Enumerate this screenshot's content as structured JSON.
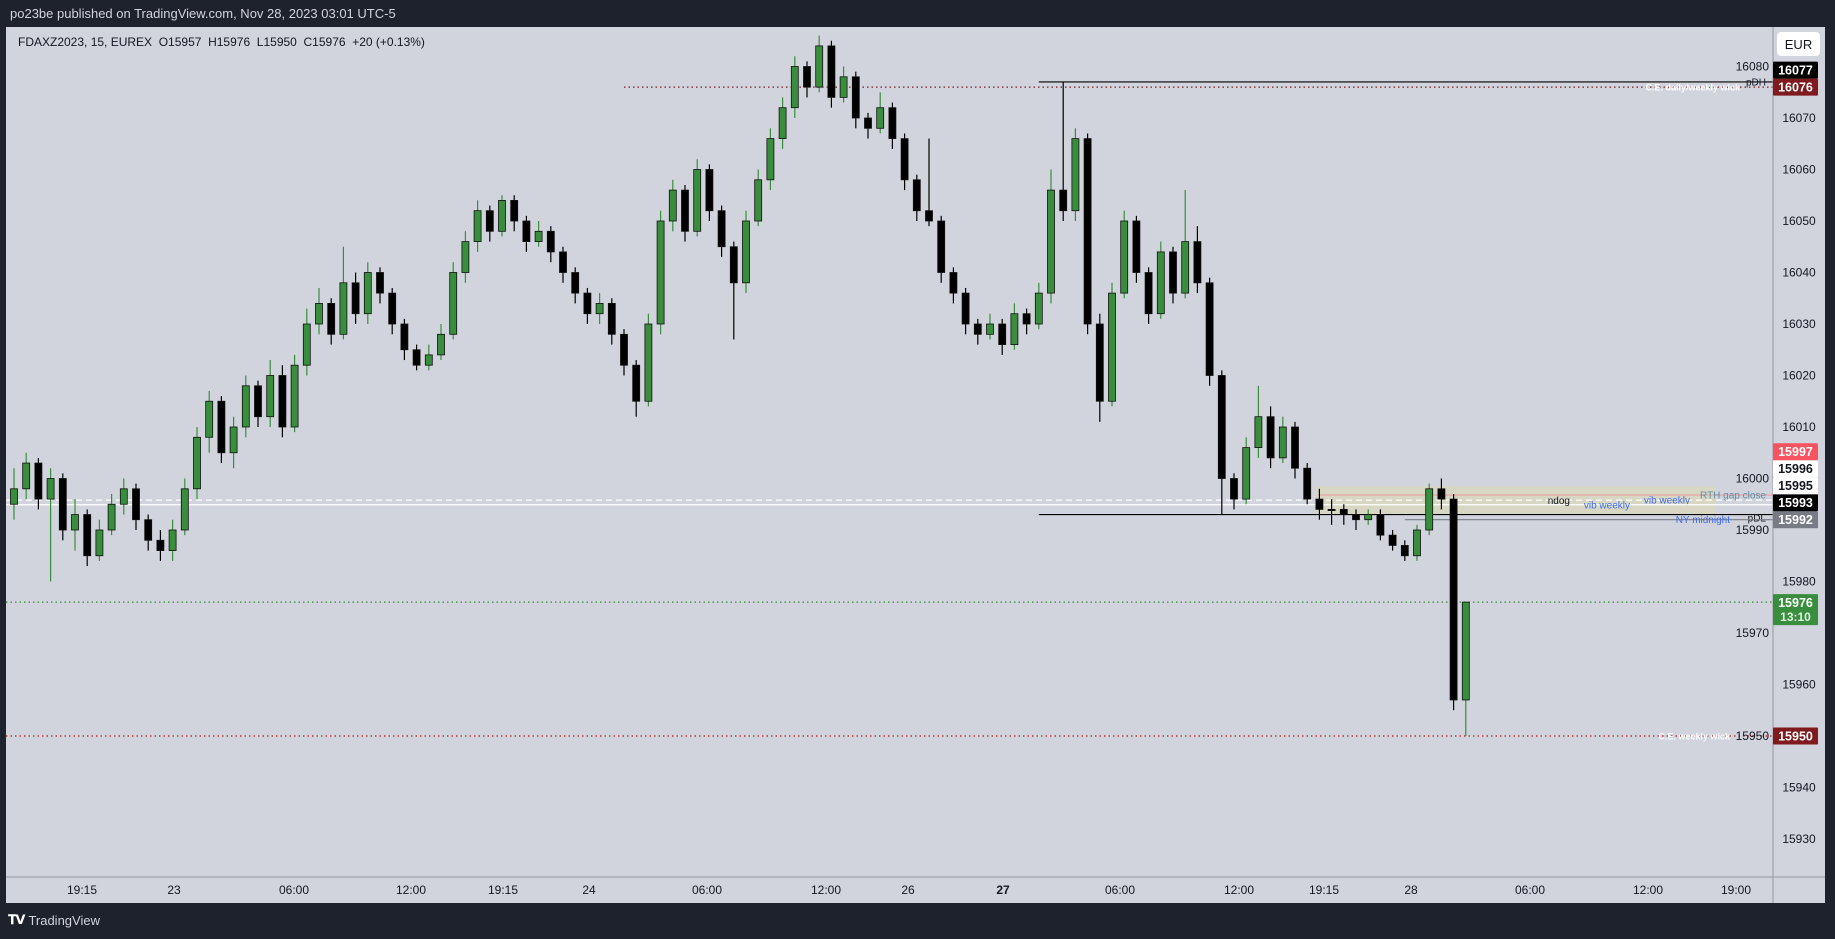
{
  "header": {
    "published": "po23be published on TradingView.com, Nov 28, 2023 03:01 UTC-5"
  },
  "legend": {
    "text": "FDAXZ2023, 15, EUREX  O15957  H15976  L15950  C15976  +20 (+0.13%)"
  },
  "currency_button": "EUR",
  "brand": {
    "logo_icon": "tradingview-logo-icon",
    "name": "TradingView"
  },
  "colors": {
    "background": "#1e222d",
    "chart_bg": "#d1d4dc",
    "up": "#388e3c",
    "down": "#000000",
    "zone": "#d8d7c3"
  },
  "chart_data": {
    "type": "candlestick",
    "symbol": "FDAXZ2023",
    "interval": "15",
    "exchange": "EUREX",
    "grid": false,
    "price_ticks": [
      16080,
      16070,
      16060,
      16050,
      16040,
      16030,
      16020,
      16010,
      16000,
      15990,
      15980,
      15970,
      15960,
      15950,
      15940,
      15930
    ],
    "time_labels": [
      {
        "text": "19:15",
        "bold": false
      },
      {
        "text": "23",
        "bold": false
      },
      {
        "text": "06:00",
        "bold": false
      },
      {
        "text": "12:00",
        "bold": false
      },
      {
        "text": "19:15",
        "bold": false
      },
      {
        "text": "24",
        "bold": false
      },
      {
        "text": "06:00",
        "bold": false
      },
      {
        "text": "12:00",
        "bold": false
      },
      {
        "text": "26",
        "bold": false
      },
      {
        "text": "27",
        "bold": true
      },
      {
        "text": "06:00",
        "bold": false
      },
      {
        "text": "12:00",
        "bold": false
      },
      {
        "text": "19:15",
        "bold": false
      },
      {
        "text": "28",
        "bold": false
      },
      {
        "text": "06:00",
        "bold": false
      },
      {
        "text": "12:00",
        "bold": false
      },
      {
        "text": "19:00",
        "bold": false
      }
    ],
    "candles_ohlc": [
      [
        15995,
        16002,
        15992,
        15998
      ],
      [
        15998,
        16005,
        15996,
        16003
      ],
      [
        16003,
        16004,
        15994,
        15996
      ],
      [
        15996,
        16002,
        15980,
        16000
      ],
      [
        16000,
        16001,
        15988,
        15990
      ],
      [
        15990,
        15996,
        15986,
        15993
      ],
      [
        15993,
        15994,
        15983,
        15985
      ],
      [
        15985,
        15992,
        15984,
        15990
      ],
      [
        15990,
        15997,
        15989,
        15995
      ],
      [
        15995,
        16000,
        15993,
        15998
      ],
      [
        15998,
        15999,
        15990,
        15992
      ],
      [
        15992,
        15993,
        15986,
        15988
      ],
      [
        15988,
        15990,
        15984,
        15986
      ],
      [
        15986,
        15992,
        15984,
        15990
      ],
      [
        15990,
        16000,
        15989,
        15998
      ],
      [
        15998,
        16010,
        15996,
        16008
      ],
      [
        16008,
        16017,
        16005,
        16015
      ],
      [
        16015,
        16016,
        16003,
        16005
      ],
      [
        16005,
        16012,
        16002,
        16010
      ],
      [
        16010,
        16020,
        16008,
        16018
      ],
      [
        16018,
        16019,
        16010,
        16012
      ],
      [
        16012,
        16023,
        16010,
        16020
      ],
      [
        16020,
        16022,
        16008,
        16010
      ],
      [
        16010,
        16024,
        16009,
        16022
      ],
      [
        16022,
        16033,
        16020,
        16030
      ],
      [
        16030,
        16037,
        16028,
        16034
      ],
      [
        16034,
        16035,
        16026,
        16028
      ],
      [
        16028,
        16045,
        16027,
        16038
      ],
      [
        16038,
        16040,
        16030,
        16032
      ],
      [
        16032,
        16042,
        16030,
        16040
      ],
      [
        16040,
        16041,
        16034,
        16036
      ],
      [
        16036,
        16037,
        16028,
        16030
      ],
      [
        16030,
        16031,
        16023,
        16025
      ],
      [
        16025,
        16026,
        16021,
        16022
      ],
      [
        16022,
        16026,
        16021,
        16024
      ],
      [
        16024,
        16030,
        16023,
        16028
      ],
      [
        16028,
        16042,
        16027,
        16040
      ],
      [
        16040,
        16048,
        16038,
        16046
      ],
      [
        16046,
        16054,
        16044,
        16052
      ],
      [
        16052,
        16053,
        16046,
        16048
      ],
      [
        16048,
        16055,
        16047,
        16054
      ],
      [
        16054,
        16055,
        16048,
        16050
      ],
      [
        16050,
        16051,
        16044,
        16046
      ],
      [
        16046,
        16050,
        16045,
        16048
      ],
      [
        16048,
        16049,
        16042,
        16044
      ],
      [
        16044,
        16045,
        16038,
        16040
      ],
      [
        16040,
        16041,
        16034,
        16036
      ],
      [
        16036,
        16037,
        16030,
        16032
      ],
      [
        16032,
        16036,
        16030,
        16034
      ],
      [
        16034,
        16035,
        16026,
        16028
      ],
      [
        16028,
        16029,
        16020,
        16022
      ],
      [
        16022,
        16023,
        16012,
        16015
      ],
      [
        16015,
        16032,
        16014,
        16030
      ],
      [
        16030,
        16052,
        16028,
        16050
      ],
      [
        16050,
        16058,
        16048,
        16056
      ],
      [
        16056,
        16057,
        16046,
        16048
      ],
      [
        16048,
        16062,
        16047,
        16060
      ],
      [
        16060,
        16061,
        16050,
        16052
      ],
      [
        16052,
        16053,
        16043,
        16045
      ],
      [
        16045,
        16046,
        16027,
        16038
      ],
      [
        16038,
        16052,
        16036,
        16050
      ],
      [
        16050,
        16060,
        16049,
        16058
      ],
      [
        16058,
        16068,
        16056,
        16066
      ],
      [
        16066,
        16074,
        16064,
        16072
      ],
      [
        16072,
        16082,
        16070,
        16080
      ],
      [
        16080,
        16081,
        16074,
        16076
      ],
      [
        16076,
        16086,
        16075,
        16084
      ],
      [
        16084,
        16085,
        16072,
        16074
      ],
      [
        16074,
        16080,
        16073,
        16078
      ],
      [
        16078,
        16079,
        16068,
        16070
      ],
      [
        16070,
        16071,
        16066,
        16068
      ],
      [
        16068,
        16075,
        16067,
        16072
      ],
      [
        16072,
        16073,
        16064,
        16066
      ],
      [
        16066,
        16067,
        16056,
        16058
      ],
      [
        16058,
        16059,
        16050,
        16052
      ],
      [
        16052,
        16066,
        16049,
        16050
      ],
      [
        16050,
        16051,
        16038,
        16040
      ],
      [
        16040,
        16041,
        16034,
        16036
      ],
      [
        16036,
        16037,
        16028,
        16030
      ],
      [
        16030,
        16031,
        16026,
        16028
      ],
      [
        16028,
        16032,
        16027,
        16030
      ],
      [
        16030,
        16031,
        16024,
        16026
      ],
      [
        16026,
        16034,
        16025,
        16032
      ],
      [
        16032,
        16033,
        16028,
        16030
      ],
      [
        16030,
        16038,
        16029,
        16036
      ],
      [
        16036,
        16060,
        16034,
        16056
      ],
      [
        16056,
        16077,
        16050,
        16052
      ],
      [
        16052,
        16068,
        16050,
        16066
      ],
      [
        16066,
        16067,
        16028,
        16030
      ],
      [
        16030,
        16032,
        16011,
        16015
      ],
      [
        16015,
        16038,
        16014,
        16036
      ],
      [
        16036,
        16052,
        16035,
        16050
      ],
      [
        16050,
        16051,
        16038,
        16040
      ],
      [
        16040,
        16041,
        16030,
        16032
      ],
      [
        16032,
        16046,
        16031,
        16044
      ],
      [
        16044,
        16045,
        16034,
        16036
      ],
      [
        16036,
        16056,
        16035,
        16046
      ],
      [
        16046,
        16049,
        16036,
        16038
      ],
      [
        16038,
        16039,
        16018,
        16020
      ],
      [
        16020,
        16021,
        15993,
        16000
      ],
      [
        16000,
        16001,
        15994,
        15996
      ],
      [
        15996,
        16008,
        15995,
        16006
      ],
      [
        16006,
        16018,
        16004,
        16012
      ],
      [
        16012,
        16014,
        16002,
        16004
      ],
      [
        16004,
        16012,
        16003,
        16010
      ],
      [
        16010,
        16011,
        16000,
        16002
      ],
      [
        16002,
        16003,
        15995,
        15996
      ],
      [
        15996,
        15998,
        15992,
        15994
      ],
      [
        15994,
        15996,
        15991,
        15994
      ],
      [
        15994,
        15995,
        15991,
        15993
      ],
      [
        15993,
        15994,
        15990,
        15992
      ],
      [
        15992,
        15994,
        15991,
        15993
      ],
      [
        15993,
        15994,
        15988,
        15989
      ],
      [
        15989,
        15990,
        15986,
        15987
      ],
      [
        15987,
        15988,
        15984,
        15985
      ],
      [
        15985,
        15991,
        15984,
        15990
      ],
      [
        15990,
        15999,
        15989,
        15998
      ],
      [
        15998,
        16000,
        15994,
        15996
      ],
      [
        15996,
        15997,
        15955,
        15957
      ],
      [
        15957,
        15976,
        15950,
        15976
      ]
    ],
    "zone": {
      "from_bar": 107,
      "price_low": 15993,
      "price_high": 15998.5
    },
    "levels": [
      {
        "price": 16077,
        "label": "pDH",
        "color": "#000000",
        "style": "solid",
        "from_bar": 84,
        "label_color": "#131722"
      },
      {
        "price": 16076,
        "label": "C.E. daily/weekly wick",
        "color": "#7f1a1f",
        "style": "dotted",
        "from_bar": 50,
        "label_color": "#ffffff"
      },
      {
        "price": 15996.8,
        "label": "RTH gap close",
        "color": "#e8a4a4",
        "style": "solid",
        "from_bar": 107,
        "label_color": "#5f8fa8"
      },
      {
        "price": 15995.8,
        "label": "vib weekly",
        "color": "#ffffff",
        "style": "dashed",
        "from_bar": 0,
        "label_color": "#3d6cf0"
      },
      {
        "price": 15994.9,
        "label": "vib weekly",
        "color": "#ffffff",
        "style": "solid",
        "from_bar": 0,
        "label_color": "#3d6cf0"
      },
      {
        "price": 15993,
        "label": "pDL",
        "color": "#000000",
        "style": "solid",
        "from_bar": 84,
        "label_color": "#131722"
      },
      {
        "price": 15992,
        "label": "NY midnight",
        "color": "#787b86",
        "style": "solid",
        "from_bar": 114,
        "label_color": "#3d6cf0"
      },
      {
        "price": 15976,
        "label": "",
        "color": "#388e3c",
        "style": "dotted",
        "from_bar": 0,
        "label_color": "#388e3c"
      },
      {
        "price": 15950,
        "label": "C.E. weekly wick",
        "color": "#b22222",
        "style": "dotted",
        "from_bar": 0,
        "label_color": "#ffffff"
      }
    ],
    "extra_label": {
      "price": 15995.8,
      "text": "ndog",
      "color": "#131722"
    },
    "price_badges": [
      {
        "price": 16077,
        "text": "16077",
        "bg": "#000000",
        "fg": "#ffffff"
      },
      {
        "price": 16076,
        "text": "16076",
        "bg": "#7f1a1f",
        "fg": "#ffffff"
      },
      {
        "price": 15997,
        "text": "15997",
        "bg": "#f7525f",
        "fg": "#ffffff"
      },
      {
        "price": 15996,
        "text": "15996",
        "bg": "#ffffff",
        "fg": "#131722"
      },
      {
        "price": 15995,
        "text": "15995",
        "bg": "#ffffff",
        "fg": "#131722"
      },
      {
        "price": 15993,
        "text": "15993",
        "bg": "#000000",
        "fg": "#ffffff"
      },
      {
        "price": 15992,
        "text": "15992",
        "bg": "#787b86",
        "fg": "#ffffff"
      },
      {
        "price": 15976,
        "text": "15976",
        "sub": "13:10",
        "bg": "#388e3c",
        "fg": "#ffffff"
      },
      {
        "price": 15950,
        "text": "15950",
        "bg": "#7f1a1f",
        "fg": "#ffffff"
      }
    ]
  }
}
